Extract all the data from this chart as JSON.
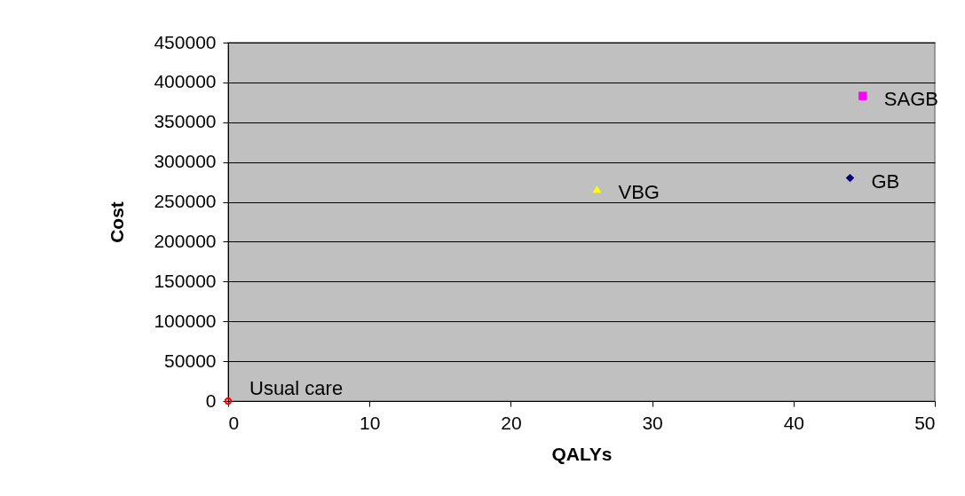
{
  "chart_data": {
    "type": "scatter",
    "xlabel": "QALYs",
    "ylabel": "Cost",
    "xlim": [
      0,
      50
    ],
    "xticks": [
      0,
      10,
      20,
      30,
      40,
      50
    ],
    "ylim": [
      0,
      450000
    ],
    "yticks": [
      0,
      50000,
      100000,
      150000,
      200000,
      250000,
      300000,
      350000,
      400000,
      450000
    ],
    "grid": "y",
    "series": [
      {
        "name": "Usual care",
        "color": "#ff0000",
        "marker": "circle",
        "x": [
          0
        ],
        "values": [
          0
        ]
      },
      {
        "name": "VBG",
        "color": "#ffff00",
        "marker": "triangle",
        "x": [
          26.1
        ],
        "values": [
          266000
        ]
      },
      {
        "name": "GB",
        "color": "#000080",
        "marker": "diamond",
        "x": [
          44
        ],
        "values": [
          280000
        ]
      },
      {
        "name": "SAGB",
        "color": "#ff00ff",
        "marker": "square",
        "x": [
          44.9
        ],
        "values": [
          383000
        ]
      }
    ]
  }
}
